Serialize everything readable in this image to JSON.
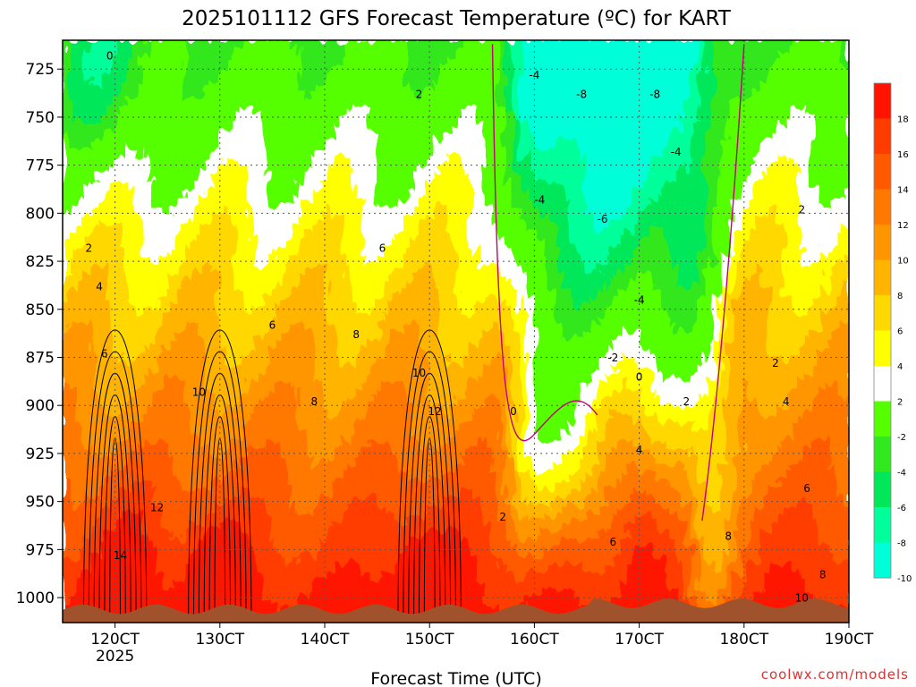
{
  "title": "2025101112 GFS Forecast Temperature (ºC) for KART",
  "credit": "coolwx.com/models",
  "chart_data": {
    "type": "heatmap",
    "title": "2025101112 GFS Forecast Temperature (ºC) for KART",
    "xlabel": "Forecast Time (UTC)",
    "ylabel": "",
    "x_ticks": [
      "120CT",
      "130CT",
      "140CT",
      "150CT",
      "160CT",
      "170CT",
      "180CT",
      "190CT"
    ],
    "x_tick_days": [
      12,
      13,
      14,
      15,
      16,
      17,
      18,
      19
    ],
    "x_sublabel": "2025",
    "xlim_days": [
      11.5,
      19.0
    ],
    "y_ticks": [
      725,
      750,
      775,
      800,
      825,
      850,
      875,
      900,
      925,
      950,
      975,
      1000
    ],
    "ylim_hpa": [
      710,
      1013
    ],
    "color_levels": [
      -10,
      -8,
      -6,
      -4,
      -2,
      2,
      4,
      6,
      8,
      10,
      12,
      14,
      16,
      18
    ],
    "color_labels": [
      "18",
      "16",
      "14",
      "12",
      "10",
      "8",
      "6",
      "4",
      "2",
      "-2",
      "-4",
      "-6",
      "-8",
      "-10"
    ],
    "colors": [
      "#00ffd8",
      "#00ff9a",
      "#00e85a",
      "#32e81e",
      "#55ff00",
      "#ffffff",
      "#ffff00",
      "#ffd800",
      "#ffb400",
      "#ff9600",
      "#ff7800",
      "#ff5a00",
      "#ff3c00",
      "#ff1400"
    ],
    "terrain_color": "#a0522d",
    "zero_contour_color": "#c0007a",
    "contour_labels": [
      "0",
      "2",
      "4",
      "6",
      "8",
      "10",
      "12",
      "14",
      "-2",
      "-4",
      "-6",
      "-8"
    ],
    "warmest_near_surface": [
      {
        "time": "120CT",
        "temp": 16
      },
      {
        "time": "130CT",
        "temp": 16
      },
      {
        "time": "150CT",
        "temp": 14
      }
    ],
    "coldest_aloft": {
      "time": "160CT–170CT",
      "pressure": 725,
      "temp": -10
    },
    "grid": true
  }
}
